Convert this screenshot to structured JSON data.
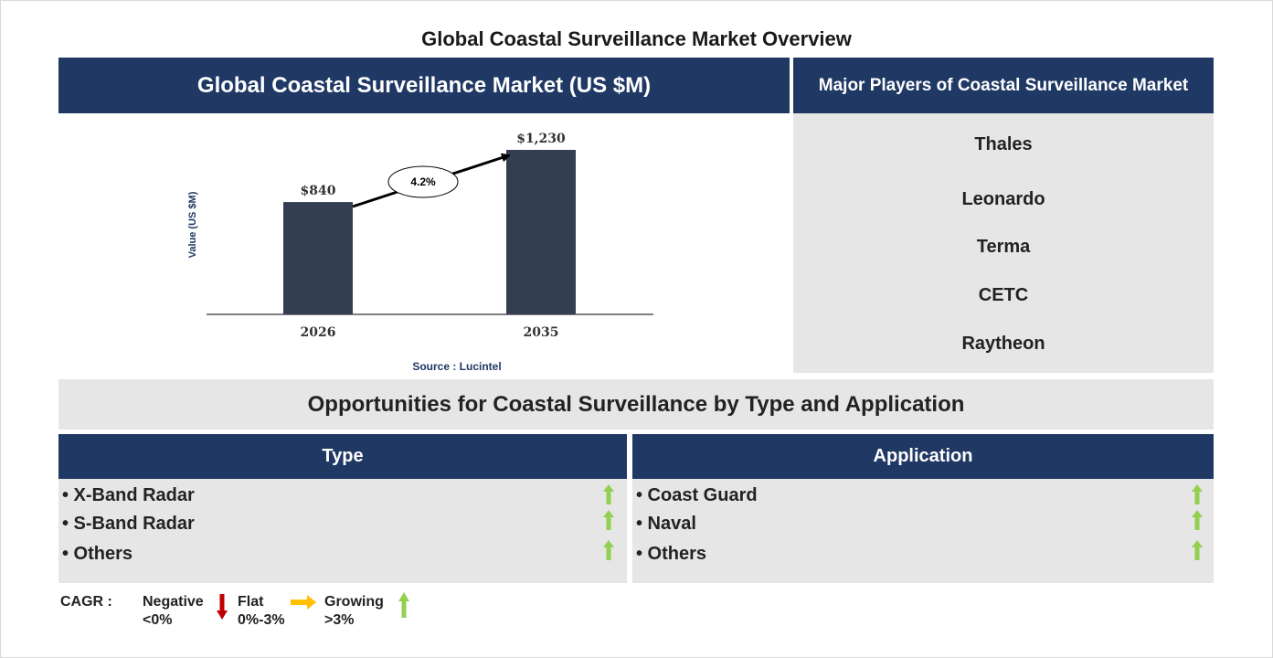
{
  "title": "Global Coastal Surveillance Market Overview",
  "chart_panel": {
    "heading": "Global Coastal Surveillance Market (US $M)",
    "source": "Source : Lucintel"
  },
  "chart_data": {
    "type": "bar",
    "categories": [
      "2026",
      "2035"
    ],
    "values": [
      840,
      1230
    ],
    "value_labels": [
      "$840",
      "$1,230"
    ],
    "ylabel": "Value (US $M)",
    "xlabel": "",
    "cagr_label": "4.2%",
    "bar_color": "#333f50",
    "grid": false
  },
  "players": {
    "heading": "Major Players of Coastal Surveillance Market",
    "items": [
      "Thales",
      "Leonardo",
      "Terma",
      "CETC",
      "Raytheon"
    ]
  },
  "opportunities": {
    "heading": "Opportunities for Coastal Surveillance by Type and Application",
    "type": {
      "heading": "Type",
      "items": [
        {
          "label": "• X-Band Radar",
          "trend": "growing"
        },
        {
          "label": "• S-Band Radar",
          "trend": "growing"
        },
        {
          "label": "• Others",
          "trend": "growing"
        }
      ]
    },
    "application": {
      "heading": "Application",
      "items": [
        {
          "label": "• Coast Guard",
          "trend": "growing"
        },
        {
          "label": "• Naval",
          "trend": "growing"
        },
        {
          "label": "• Others",
          "trend": "growing"
        }
      ]
    }
  },
  "legend": {
    "cagr": "CAGR  :",
    "negative": "Negative",
    "negative_range": "<0%",
    "flat": "Flat",
    "flat_range": "0%-3%",
    "growing": "Growing",
    "growing_range": ">3%"
  },
  "colors": {
    "navy": "#1f3864",
    "panel_grey": "#e6e6e6",
    "growing": "#92d050",
    "flat": "#ffc000",
    "negative": "#c00000"
  }
}
